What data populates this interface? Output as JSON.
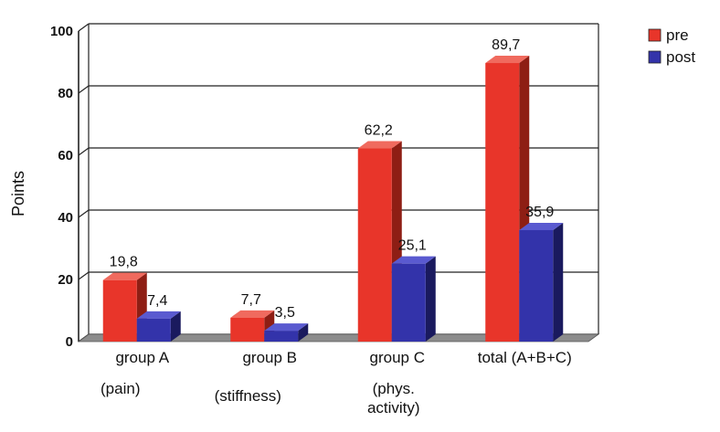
{
  "chart_data": {
    "type": "bar",
    "categories": [
      "group A",
      "group B",
      "group C",
      "total (A+B+C)"
    ],
    "category_sublabels": [
      [
        "(pain)"
      ],
      [
        "(stiffness)"
      ],
      [
        "(phys.",
        "activity)"
      ],
      []
    ],
    "series": [
      {
        "name": "pre",
        "values": [
          19.8,
          7.7,
          62.2,
          89.7
        ],
        "labels": [
          "19,8",
          "7,7",
          "62,2",
          "89,7"
        ],
        "color": "#e8352a",
        "side_color": "#8e1e14",
        "top_color": "#f06a5e"
      },
      {
        "name": "post",
        "values": [
          7.4,
          3.5,
          25.1,
          35.9
        ],
        "labels": [
          "7,4",
          "3,5",
          "25,1",
          "35,9"
        ],
        "color": "#3333aa",
        "side_color": "#1a1a5e",
        "top_color": "#5a5ad0"
      }
    ],
    "ylabel": "Points",
    "xlabel": "",
    "ylim": [
      0,
      100
    ],
    "yticks": [
      "0",
      "20",
      "40",
      "60",
      "80",
      "100"
    ],
    "grid": true,
    "legend": "top-right",
    "floor_color": "#8c8c8c"
  }
}
